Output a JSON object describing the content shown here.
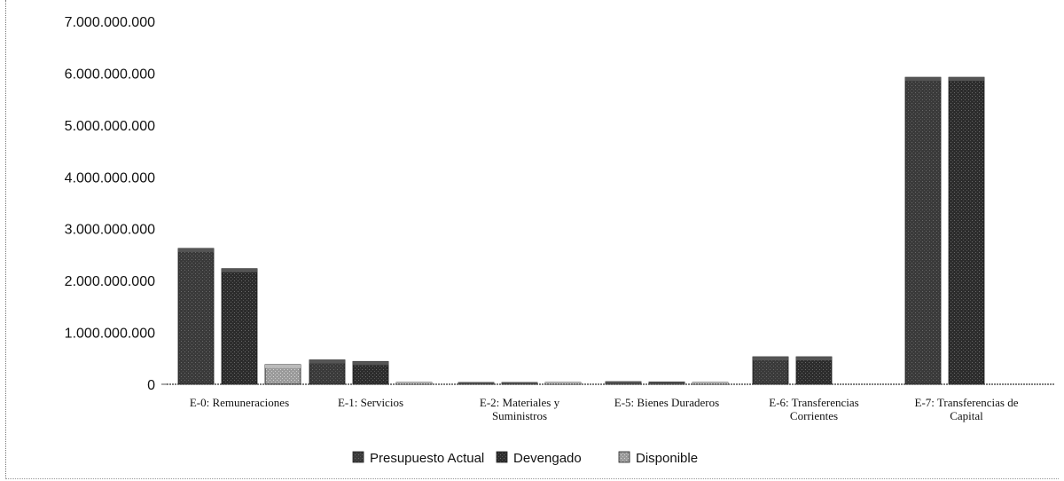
{
  "chart_data": {
    "type": "bar",
    "title": "",
    "xlabel": "",
    "ylabel": "",
    "ylim": [
      0,
      7000000000
    ],
    "yticks": [
      0,
      1000000000,
      2000000000,
      3000000000,
      4000000000,
      5000000000,
      6000000000,
      7000000000
    ],
    "ytick_labels": [
      "0",
      "1.000.000.000",
      "2.000.000.000",
      "3.000.000.000",
      "4.000.000.000",
      "5.000.000.000",
      "6.000.000.000",
      "7.000.000.000"
    ],
    "categories": [
      [
        "E-0: Remuneraciones"
      ],
      [
        "E-1: Servicios"
      ],
      [
        "E-2: Materiales y",
        "Suministros"
      ],
      [
        "E-5: Bienes Duraderos"
      ],
      [
        "E-6: Transferencias",
        "Corrientes"
      ],
      [
        "E-7: Transferencias de",
        "Capital"
      ]
    ],
    "series": [
      {
        "name": "Presupuesto Actual",
        "color": "#3a3a3a",
        "values": [
          2620000000,
          470000000,
          30000000,
          50000000,
          530000000,
          5920000000
        ]
      },
      {
        "name": "Devengado",
        "color": "#2c2c2c",
        "values": [
          2230000000,
          440000000,
          15000000,
          45000000,
          530000000,
          5920000000
        ]
      },
      {
        "name": "Disponible",
        "color": "#9a9a9a",
        "values": [
          380000000,
          25000000,
          15000000,
          5000000,
          0,
          0
        ]
      }
    ],
    "grid": false,
    "legend_position": "bottom"
  }
}
